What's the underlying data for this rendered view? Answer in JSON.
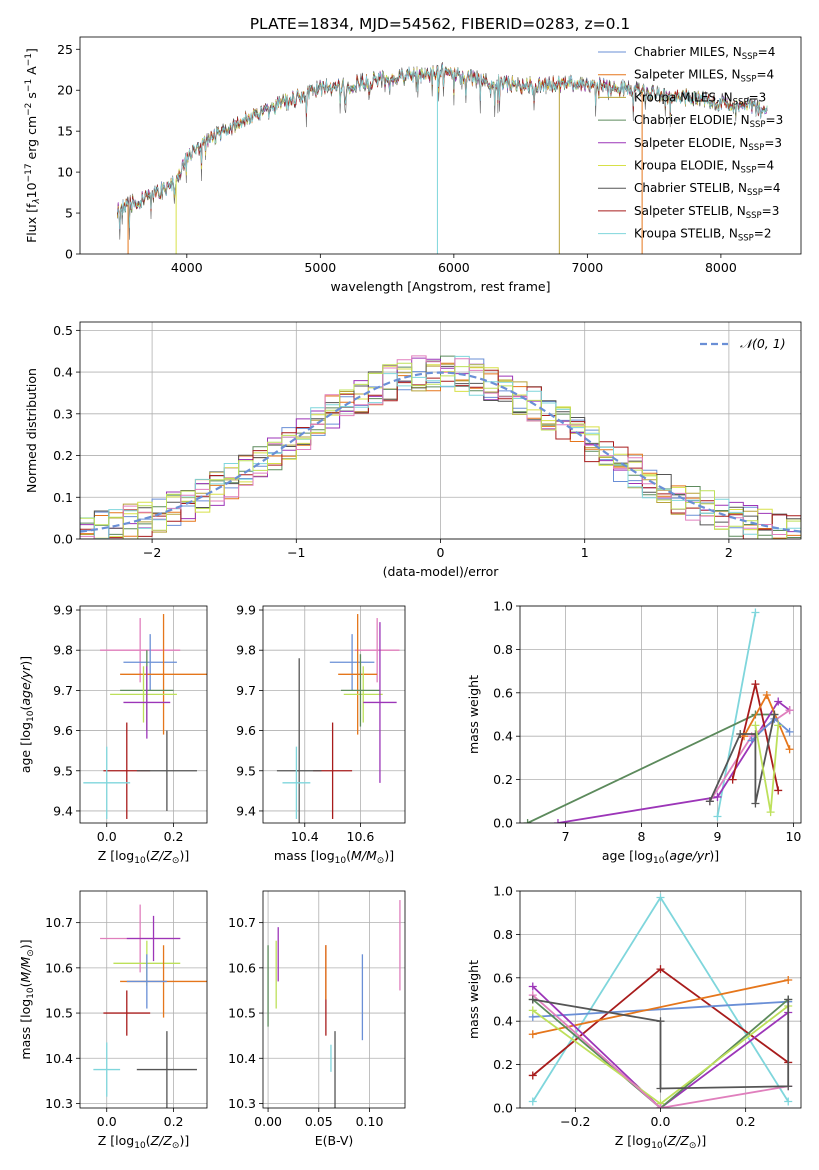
{
  "figure_title": "PLATE=1834, MJD=54562, FIBERID=0283, z=0.1",
  "colors": {
    "Chabrier MILES": "#6a8fd6",
    "Salpeter MILES": "#e5761b",
    "Kroupa MILES": "#b8a23a",
    "Chabrier ELODIE": "#5c8a5c",
    "Salpeter ELODIE": "#9c35b8",
    "Kroupa ELODIE": "#d7e048",
    "Chabrier STELIB": "#555555",
    "Salpeter STELIB": "#a81c1c",
    "Kroupa STELIB": "#7fd6dc",
    "Pink": "#e07fbd",
    "Lime": "#bde05a",
    "Orange": "#e5761b"
  },
  "chart_data": [
    {
      "id": "spectrum",
      "type": "line",
      "title": "PLATE=1834, MJD=54562, FIBERID=0283, z=0.1",
      "xlabel": "wavelength [Angstrom, rest frame]",
      "ylabel": "Flux [f_λ10^-17 erg cm^-2 s^-1 A^-1]",
      "xlim": [
        3200,
        8600
      ],
      "ylim": [
        0,
        26.5
      ],
      "xticks": [
        4000,
        5000,
        6000,
        7000,
        8000
      ],
      "yticks": [
        0,
        5,
        10,
        15,
        20,
        25
      ],
      "continuum": {
        "x": [
          3480,
          3700,
          3900,
          4000,
          4100,
          4300,
          4500,
          4700,
          4900,
          5000,
          5200,
          5400,
          5600,
          5800,
          5900,
          6000,
          6200,
          6400,
          6600,
          6800,
          7000,
          7200,
          7400,
          7600,
          7800,
          8000,
          8200,
          8350
        ],
        "y": [
          5.5,
          6.8,
          8.5,
          12.0,
          13.2,
          15.2,
          16.8,
          18.3,
          19.5,
          20.2,
          20.6,
          21.2,
          21.6,
          22.0,
          22.3,
          22.0,
          21.3,
          20.8,
          20.5,
          20.7,
          20.6,
          20.3,
          19.8,
          19.3,
          19.0,
          18.5,
          18.0,
          17.5
        ]
      },
      "legend_position": "upper right",
      "legend": [
        {
          "label": "Chabrier MILES, N",
          "sub": "SSP",
          "count": "=4",
          "color": "Chabrier MILES"
        },
        {
          "label": "Salpeter MILES, N",
          "sub": "SSP",
          "count": "=4",
          "color": "Salpeter MILES"
        },
        {
          "label": "Kroupa MILES, N",
          "sub": "SSP",
          "count": "=3",
          "color": "Kroupa MILES"
        },
        {
          "label": "Chabrier ELODIE, N",
          "sub": "SSP",
          "count": "=3",
          "color": "Chabrier ELODIE"
        },
        {
          "label": "Salpeter ELODIE, N",
          "sub": "SSP",
          "count": "=3",
          "color": "Salpeter ELODIE"
        },
        {
          "label": "Kroupa ELODIE, N",
          "sub": "SSP",
          "count": "=4",
          "color": "Kroupa ELODIE"
        },
        {
          "label": "Chabrier STELIB, N",
          "sub": "SSP",
          "count": "=4",
          "color": "Chabrier STELIB"
        },
        {
          "label": "Salpeter STELIB, N",
          "sub": "SSP",
          "count": "=3",
          "color": "Salpeter STELIB"
        },
        {
          "label": "Kroupa STELIB, N",
          "sub": "SSP",
          "count": "=2",
          "color": "Kroupa STELIB"
        }
      ]
    },
    {
      "id": "residuals",
      "type": "line",
      "xlabel": "(data-model)/error",
      "ylabel": "Normed distribution",
      "xlim": [
        -2.5,
        2.5
      ],
      "ylim": [
        0,
        0.52
      ],
      "xticks": [
        -2,
        -1,
        0,
        1,
        2
      ],
      "yticks": [
        0.0,
        0.1,
        0.2,
        0.3,
        0.4,
        0.5
      ],
      "legend": [
        {
          "label": "𝒩(0, 1)",
          "style": "dashed",
          "color": "Chabrier MILES"
        }
      ],
      "bin_width": 0.1,
      "gaussian": {
        "mean": 0,
        "sigma": 1
      }
    },
    {
      "id": "age_vs_Z",
      "type": "scatter",
      "xlabel": "Z [log10(Z/Z⊙)]",
      "ylabel": "age  [log10(age/yr)]",
      "xlim": [
        -0.08,
        0.3
      ],
      "ylim": [
        9.37,
        9.91
      ],
      "xticks": [
        0.0,
        0.2
      ],
      "yticks": [
        9.4,
        9.5,
        9.6,
        9.7,
        9.8,
        9.9
      ],
      "points": [
        {
          "x": 0.1,
          "xerr": 0.12,
          "y": 9.8,
          "yerr": 0.08,
          "color": "Pink"
        },
        {
          "x": 0.13,
          "xerr": 0.08,
          "y": 9.77,
          "yerr": 0.07,
          "color": "Chabrier MILES"
        },
        {
          "x": 0.17,
          "xerr": 0.13,
          "y": 9.74,
          "yerr": 0.15,
          "color": "Salpeter MILES"
        },
        {
          "x": 0.12,
          "xerr": 0.08,
          "y": 9.7,
          "yerr": 0.1,
          "color": "Chabrier ELODIE"
        },
        {
          "x": 0.11,
          "xerr": 0.1,
          "y": 9.69,
          "yerr": 0.07,
          "color": "Lime"
        },
        {
          "x": 0.12,
          "xerr": 0.07,
          "y": 9.67,
          "yerr": 0.09,
          "color": "Salpeter ELODIE"
        },
        {
          "x": 0.06,
          "xerr": 0.07,
          "y": 9.5,
          "yerr": 0.12,
          "color": "Salpeter STELIB"
        },
        {
          "x": 0.18,
          "xerr": 0.09,
          "y": 9.5,
          "yerr": 0.1,
          "color": "Chabrier STELIB"
        },
        {
          "x": 0.0,
          "xerr": 0.07,
          "y": 9.47,
          "yerr": 0.09,
          "color": "Kroupa STELIB"
        }
      ]
    },
    {
      "id": "age_vs_mass",
      "type": "scatter",
      "xlabel": "mass [log10(M/M⊙)]",
      "xlim": [
        10.25,
        10.76
      ],
      "ylim": [
        9.37,
        9.91
      ],
      "xticks": [
        10.4,
        10.6
      ],
      "yticks": [
        9.4,
        9.5,
        9.6,
        9.7,
        9.8,
        9.9
      ],
      "points": [
        {
          "x": 10.66,
          "xerr": 0.08,
          "y": 9.8,
          "yerr": 0.08,
          "color": "Pink"
        },
        {
          "x": 10.57,
          "xerr": 0.08,
          "y": 9.77,
          "yerr": 0.07,
          "color": "Chabrier MILES"
        },
        {
          "x": 10.59,
          "xerr": 0.07,
          "y": 9.74,
          "yerr": 0.15,
          "color": "Salpeter MILES"
        },
        {
          "x": 10.61,
          "xerr": 0.07,
          "y": 9.69,
          "yerr": 0.07,
          "color": "Lime"
        },
        {
          "x": 10.6,
          "xerr": 0.07,
          "y": 9.7,
          "yerr": 0.09,
          "color": "Chabrier ELODIE"
        },
        {
          "x": 10.67,
          "xerr": 0.06,
          "y": 9.67,
          "yerr": 0.2,
          "color": "Salpeter ELODIE"
        },
        {
          "x": 10.5,
          "xerr": 0.07,
          "y": 9.5,
          "yerr": 0.12,
          "color": "Salpeter STELIB"
        },
        {
          "x": 10.38,
          "xerr": 0.08,
          "y": 9.5,
          "yerr": 0.28,
          "color": "Chabrier STELIB"
        },
        {
          "x": 10.37,
          "xerr": 0.05,
          "y": 9.47,
          "yerr": 0.09,
          "color": "Kroupa STELIB"
        }
      ]
    },
    {
      "id": "massweight_vs_age",
      "type": "line",
      "xlabel": "age  [log10(age/yr)]",
      "ylabel": "mass weight",
      "xlim": [
        6.4,
        10.1
      ],
      "ylim": [
        0,
        1.0
      ],
      "xticks": [
        7,
        8,
        9,
        10
      ],
      "yticks": [
        0.0,
        0.2,
        0.4,
        0.6,
        0.8,
        1.0
      ],
      "series": [
        {
          "color": "Kroupa STELIB",
          "x": [
            9.0,
            9.5
          ],
          "y": [
            0.03,
            0.97
          ]
        },
        {
          "color": "Chabrier ELODIE",
          "x": [
            6.5,
            9.5,
            9.75
          ],
          "y": [
            0.0,
            0.5,
            0.5
          ]
        },
        {
          "color": "Salpeter ELODIE",
          "x": [
            6.9,
            9.0,
            9.8,
            9.95
          ],
          "y": [
            0.0,
            0.12,
            0.56,
            0.52
          ]
        },
        {
          "color": "Pink",
          "x": [
            8.9,
            9.45,
            9.95
          ],
          "y": [
            0.1,
            0.4,
            0.52
          ]
        },
        {
          "color": "Salpeter STELIB",
          "x": [
            9.2,
            9.5,
            9.8
          ],
          "y": [
            0.2,
            0.64,
            0.15
          ]
        },
        {
          "color": "Salpeter MILES",
          "x": [
            9.35,
            9.65,
            9.95
          ],
          "y": [
            0.4,
            0.59,
            0.34
          ]
        },
        {
          "color": "Chabrier MILES",
          "x": [
            9.45,
            9.75,
            9.95
          ],
          "y": [
            0.38,
            0.48,
            0.42
          ]
        },
        {
          "color": "Chabrier STELIB",
          "x": [
            8.9,
            9.3,
            9.5,
            9.5,
            9.75
          ],
          "y": [
            0.1,
            0.41,
            0.41,
            0.09,
            0.5
          ]
        },
        {
          "color": "Lime",
          "x": [
            9.5,
            9.7,
            9.8
          ],
          "y": [
            0.45,
            0.05,
            0.45
          ]
        }
      ]
    },
    {
      "id": "mass_vs_Z",
      "type": "scatter",
      "xlabel": "Z [log10(Z/Z⊙)]",
      "ylabel": "mass [log10(M/M⊙)]",
      "xlim": [
        -0.08,
        0.3
      ],
      "ylim": [
        10.29,
        10.77
      ],
      "xticks": [
        0.0,
        0.2
      ],
      "yticks": [
        10.3,
        10.4,
        10.5,
        10.6,
        10.7
      ],
      "points": [
        {
          "x": 0.1,
          "xerr": 0.12,
          "y": 10.665,
          "yerr": 0.075,
          "color": "Pink"
        },
        {
          "x": 0.14,
          "xerr": 0.08,
          "y": 10.665,
          "yerr": 0.05,
          "color": "Salpeter ELODIE"
        },
        {
          "x": 0.12,
          "xerr": 0.1,
          "y": 10.61,
          "yerr": 0.05,
          "color": "Lime"
        },
        {
          "x": 0.17,
          "xerr": 0.13,
          "y": 10.57,
          "yerr": 0.08,
          "color": "Salpeter MILES"
        },
        {
          "x": 0.12,
          "xerr": 0.06,
          "y": 10.57,
          "yerr": 0.06,
          "color": "Chabrier MILES"
        },
        {
          "x": 0.06,
          "xerr": 0.07,
          "y": 10.5,
          "yerr": 0.05,
          "color": "Salpeter STELIB"
        },
        {
          "x": 0.18,
          "xerr": 0.09,
          "y": 10.375,
          "yerr": 0.085,
          "color": "Chabrier STELIB"
        },
        {
          "x": 0.0,
          "xerr": 0.04,
          "y": 10.375,
          "yerr": 0.06,
          "color": "Kroupa STELIB"
        }
      ]
    },
    {
      "id": "mass_vs_EBV",
      "type": "scatter",
      "xlabel": "E(B-V)",
      "xlim": [
        -0.005,
        0.135
      ],
      "ylim": [
        10.29,
        10.77
      ],
      "xticks": [
        0.0,
        0.05,
        0.1
      ],
      "yticks": [
        10.3,
        10.4,
        10.5,
        10.6,
        10.7
      ],
      "points": [
        {
          "x": 0.0,
          "y": 10.56,
          "yerr": 0.09,
          "color": "Chabrier ELODIE"
        },
        {
          "x": 0.008,
          "y": 10.585,
          "yerr": 0.075,
          "color": "Lime"
        },
        {
          "x": 0.01,
          "y": 10.63,
          "yerr": 0.06,
          "color": "Salpeter ELODIE"
        },
        {
          "x": 0.057,
          "y": 10.55,
          "yerr": 0.1,
          "color": "Salpeter STELIB"
        },
        {
          "x": 0.057,
          "y": 10.59,
          "yerr": 0.06,
          "color": "Salpeter MILES"
        },
        {
          "x": 0.062,
          "y": 10.4,
          "yerr": 0.03,
          "color": "Kroupa STELIB"
        },
        {
          "x": 0.066,
          "y": 10.375,
          "yerr": 0.085,
          "color": "Chabrier STELIB"
        },
        {
          "x": 0.093,
          "y": 10.535,
          "yerr": 0.095,
          "color": "Chabrier MILES"
        },
        {
          "x": 0.13,
          "y": 10.65,
          "yerr": 0.1,
          "color": "Pink"
        }
      ]
    },
    {
      "id": "massweight_vs_Z",
      "type": "line",
      "xlabel": "Z [log10(Z/Z⊙)]",
      "ylabel": "mass weight",
      "xlim": [
        -0.33,
        0.33
      ],
      "ylim": [
        0,
        1.0
      ],
      "xticks": [
        -0.2,
        0.0,
        0.2
      ],
      "yticks": [
        0.0,
        0.2,
        0.4,
        0.6,
        0.8,
        1.0
      ],
      "series": [
        {
          "color": "Kroupa STELIB",
          "x": [
            -0.3,
            0.0,
            0.3
          ],
          "y": [
            0.03,
            0.97,
            0.03
          ]
        },
        {
          "color": "Salpeter STELIB",
          "x": [
            -0.3,
            0.0,
            0.3
          ],
          "y": [
            0.15,
            0.64,
            0.21
          ]
        },
        {
          "color": "Chabrier MILES",
          "x": [
            -0.3,
            0.3
          ],
          "y": [
            0.42,
            0.49
          ]
        },
        {
          "color": "Salpeter MILES",
          "x": [
            -0.3,
            0.3
          ],
          "y": [
            0.34,
            0.59
          ]
        },
        {
          "color": "Salpeter ELODIE",
          "x": [
            -0.3,
            0.0,
            0.3
          ],
          "y": [
            0.56,
            0.0,
            0.44
          ]
        },
        {
          "color": "Chabrier ELODIE",
          "x": [
            -0.3,
            0.0,
            0.3
          ],
          "y": [
            0.5,
            0.0,
            0.5
          ]
        },
        {
          "color": "Lime",
          "x": [
            -0.3,
            0.0,
            0.3
          ],
          "y": [
            0.45,
            0.02,
            0.47
          ]
        },
        {
          "color": "Pink",
          "x": [
            -0.3,
            0.0,
            0.3
          ],
          "y": [
            0.52,
            0.0,
            0.1
          ]
        },
        {
          "color": "Chabrier STELIB",
          "x": [
            -0.3,
            0.0,
            0.0,
            0.3,
            0.3
          ],
          "y": [
            0.5,
            0.4,
            0.09,
            0.1,
            0.5
          ]
        }
      ]
    }
  ]
}
